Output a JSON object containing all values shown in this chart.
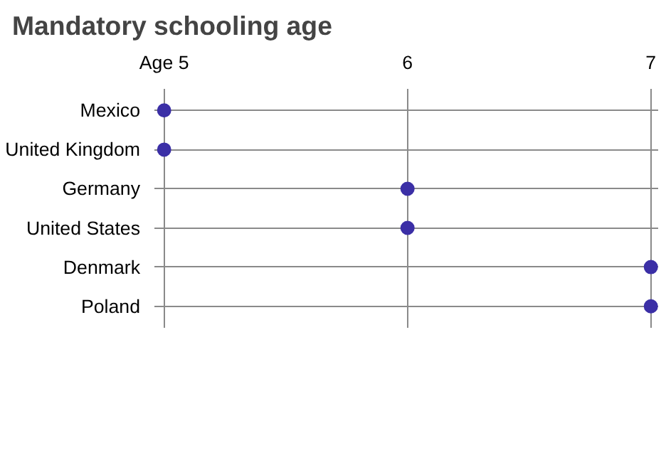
{
  "chart_data": {
    "type": "scatter",
    "title": "Mandatory schooling age",
    "orientation": "horizontal",
    "categories": [
      "Mexico",
      "United Kingdom",
      "Germany",
      "United States",
      "Denmark",
      "Poland"
    ],
    "values": [
      5,
      5,
      6,
      6,
      7,
      7
    ],
    "color": "#3b2fa6",
    "marker": "circle",
    "xlim": [
      4.96,
      7.03
    ],
    "xticks": [
      {
        "value": 5,
        "label": "Age 5"
      },
      6,
      7
    ],
    "grid": true
  }
}
